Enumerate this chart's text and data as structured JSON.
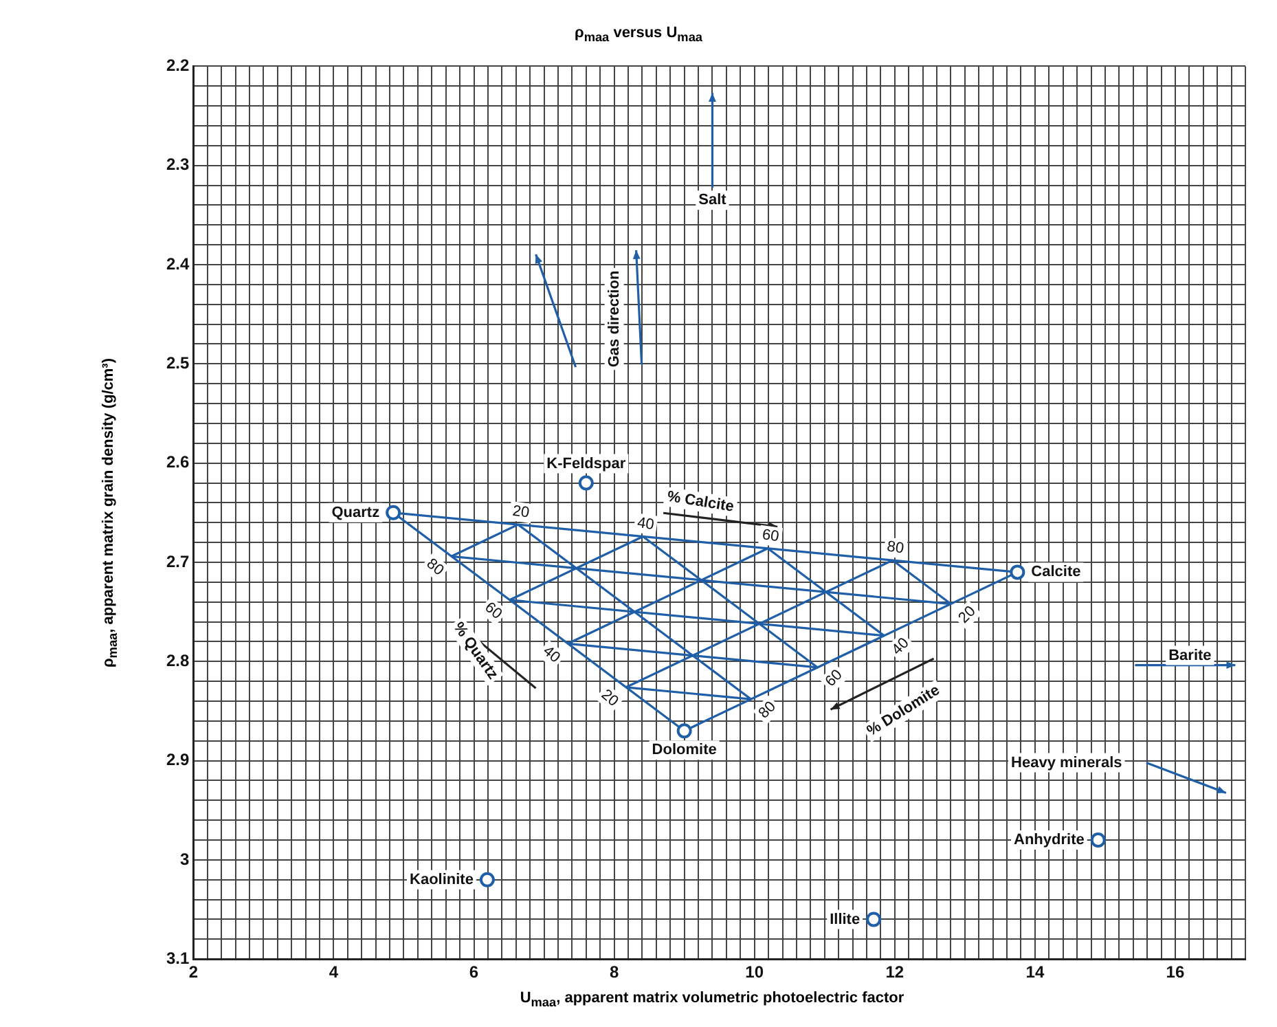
{
  "chart_data": {
    "type": "scatter",
    "title": "ρ$_{maa}$ versus U$_{maa}$",
    "xlabel": "U$_{maa}$, apparent matrix volumetric photoelectric factor",
    "ylabel": "ρ$_{maa}$, apparent matrix grain density (g/cm³)",
    "xlim": [
      2,
      17
    ],
    "ylim": [
      3.1,
      2.2
    ],
    "xticks": [
      2,
      {
        "value": 2.2,
        "label": null
      },
      {
        "value": 2.4,
        "label": null
      },
      {
        "value": 2.6,
        "label": null
      },
      {
        "value": 2.8,
        "label": null
      },
      {
        "value": 3,
        "label": null
      },
      {
        "value": 3.2,
        "label": null
      },
      {
        "value": 3.4,
        "label": null
      },
      {
        "value": 3.6,
        "label": null
      },
      {
        "value": 3.8,
        "label": null
      },
      4,
      {
        "value": 4.2,
        "label": null
      },
      {
        "value": 4.4,
        "label": null
      },
      {
        "value": 4.6,
        "label": null
      },
      {
        "value": 4.8,
        "label": null
      },
      {
        "value": 5,
        "label": null
      },
      {
        "value": 5.2,
        "label": null
      },
      {
        "value": 5.4,
        "label": null
      },
      {
        "value": 5.6,
        "label": null
      },
      {
        "value": 5.8,
        "label": null
      },
      6,
      {
        "value": 6.2,
        "label": null
      },
      {
        "value": 6.4,
        "label": null
      },
      {
        "value": 6.6,
        "label": null
      },
      {
        "value": 6.8,
        "label": null
      },
      {
        "value": 7,
        "label": null
      },
      {
        "value": 7.2,
        "label": null
      },
      {
        "value": 7.4,
        "label": null
      },
      {
        "value": 7.6,
        "label": null
      },
      {
        "value": 7.8,
        "label": null
      },
      8,
      {
        "value": 8.2,
        "label": null
      },
      {
        "value": 8.4,
        "label": null
      },
      {
        "value": 8.6,
        "label": null
      },
      {
        "value": 8.8,
        "label": null
      },
      {
        "value": 9,
        "label": null
      },
      {
        "value": 9.2,
        "label": null
      },
      {
        "value": 9.4,
        "label": null
      },
      {
        "value": 9.6,
        "label": null
      },
      {
        "value": 9.8,
        "label": null
      },
      10,
      {
        "value": 10.2,
        "label": null
      },
      {
        "value": 10.4,
        "label": null
      },
      {
        "value": 10.6,
        "label": null
      },
      {
        "value": 10.8,
        "label": null
      },
      {
        "value": 11,
        "label": null
      },
      {
        "value": 11.2,
        "label": null
      },
      {
        "value": 11.4,
        "label": null
      },
      {
        "value": 11.6,
        "label": null
      },
      {
        "value": 11.8,
        "label": null
      },
      12,
      {
        "value": 12.2,
        "label": null
      },
      {
        "value": 12.4,
        "label": null
      },
      {
        "value": 12.6,
        "label": null
      },
      {
        "value": 12.8,
        "label": null
      },
      {
        "value": 13,
        "label": null
      },
      {
        "value": 13.2,
        "label": null
      },
      {
        "value": 13.4,
        "label": null
      },
      {
        "value": 13.6,
        "label": null
      },
      {
        "value": 13.8,
        "label": null
      },
      14,
      {
        "value": 14.2,
        "label": null
      },
      {
        "value": 14.4,
        "label": null
      },
      {
        "value": 14.6,
        "label": null
      },
      {
        "value": 14.8,
        "label": null
      },
      {
        "value": 15,
        "label": null
      },
      {
        "value": 15.2,
        "label": null
      },
      {
        "value": 15.4,
        "label": null
      },
      {
        "value": 15.6,
        "label": null
      },
      {
        "value": 15.8,
        "label": null
      },
      16,
      {
        "value": 16.2,
        "label": null
      },
      {
        "value": 16.4,
        "label": null
      },
      {
        "value": 16.6,
        "label": null
      },
      {
        "value": 16.8,
        "label": null
      },
      {
        "value": 17,
        "label": null
      }
    ],
    "yticks": [
      2.2,
      {
        "value": 2.22,
        "label": null
      },
      {
        "value": 2.24,
        "label": null
      },
      {
        "value": 2.26,
        "label": null
      },
      {
        "value": 2.28,
        "label": null
      },
      2.3,
      {
        "value": 2.32,
        "label": null
      },
      {
        "value": 2.34,
        "label": null
      },
      {
        "value": 2.36,
        "label": null
      },
      {
        "value": 2.38,
        "label": null
      },
      2.4,
      {
        "value": 2.42,
        "label": null
      },
      {
        "value": 2.44,
        "label": null
      },
      {
        "value": 2.46,
        "label": null
      },
      {
        "value": 2.48,
        "label": null
      },
      2.5,
      {
        "value": 2.52,
        "label": null
      },
      {
        "value": 2.54,
        "label": null
      },
      {
        "value": 2.56,
        "label": null
      },
      {
        "value": 2.58,
        "label": null
      },
      2.6,
      {
        "value": 2.62,
        "label": null
      },
      {
        "value": 2.64,
        "label": null
      },
      {
        "value": 2.66,
        "label": null
      },
      {
        "value": 2.68,
        "label": null
      },
      2.7,
      {
        "value": 2.72,
        "label": null
      },
      {
        "value": 2.74,
        "label": null
      },
      {
        "value": 2.76,
        "label": null
      },
      {
        "value": 2.78,
        "label": null
      },
      2.8,
      {
        "value": 2.82,
        "label": null
      },
      {
        "value": 2.84,
        "label": null
      },
      {
        "value": 2.86,
        "label": null
      },
      {
        "value": 2.88,
        "label": null
      },
      2.9,
      {
        "value": 2.92,
        "label": null
      },
      {
        "value": 2.94,
        "label": null
      },
      {
        "value": 2.96,
        "label": null
      },
      {
        "value": 2.98,
        "label": null
      },
      3.0,
      {
        "value": 3.02,
        "label": null
      },
      {
        "value": 3.04,
        "label": null
      },
      {
        "value": 3.06,
        "label": null
      },
      {
        "value": 3.08,
        "label": null
      },
      3.1
    ],
    "grid": true,
    "legend": false,
    "series": [
      {
        "type": "line",
        "color": "#1f5fa8",
        "x": [
          4.85,
          13.75
        ],
        "values": [
          2.65,
          2.71
        ]
      },
      {
        "type": "line",
        "color": "#1f5fa8",
        "x": [
          13.75,
          9.0
        ],
        "values": [
          2.71,
          2.87
        ]
      },
      {
        "type": "line",
        "color": "#1f5fa8",
        "x": [
          9.0,
          4.85
        ],
        "values": [
          2.87,
          2.65
        ]
      },
      {
        "type": "line",
        "color": "#1f5fa8",
        "x": [
          6.63,
          9.95
        ],
        "values": [
          2.662,
          2.838
        ]
      },
      {
        "type": "line",
        "color": "#1f5fa8",
        "x": [
          8.41,
          10.9
        ],
        "values": [
          2.674,
          2.806
        ]
      },
      {
        "type": "line",
        "color": "#1f5fa8",
        "x": [
          10.19,
          11.85
        ],
        "values": [
          2.686,
          2.774
        ]
      },
      {
        "type": "line",
        "color": "#1f5fa8",
        "x": [
          11.97,
          12.8
        ],
        "values": [
          2.698,
          2.742
        ]
      },
      {
        "type": "line",
        "color": "#1f5fa8",
        "x": [
          5.68,
          12.8
        ],
        "values": [
          2.694,
          2.742
        ]
      },
      {
        "type": "line",
        "color": "#1f5fa8",
        "x": [
          6.51,
          11.85
        ],
        "values": [
          2.738,
          2.774
        ]
      },
      {
        "type": "line",
        "color": "#1f5fa8",
        "x": [
          7.34,
          10.9
        ],
        "values": [
          2.782,
          2.806
        ]
      },
      {
        "type": "line",
        "color": "#1f5fa8",
        "x": [
          8.17,
          9.95
        ],
        "values": [
          2.826,
          2.838
        ]
      },
      {
        "type": "line",
        "color": "#1f5fa8",
        "x": [
          8.17,
          11.97
        ],
        "values": [
          2.826,
          2.698
        ]
      },
      {
        "type": "line",
        "color": "#1f5fa8",
        "x": [
          7.34,
          10.19
        ],
        "values": [
          2.782,
          2.686
        ]
      },
      {
        "type": "line",
        "color": "#1f5fa8",
        "x": [
          6.51,
          8.41
        ],
        "values": [
          2.738,
          2.674
        ]
      },
      {
        "type": "line",
        "color": "#1f5fa8",
        "x": [
          5.68,
          6.63
        ],
        "values": [
          2.694,
          2.662
        ]
      },
      {
        "name": "Quartz",
        "color": "#1f5fa8",
        "marker": "circle",
        "x": [
          4.85
        ],
        "values": [
          2.65
        ]
      },
      {
        "name": "K-Feldspar",
        "color": "#1f5fa8",
        "marker": "circle",
        "x": [
          7.6
        ],
        "values": [
          2.62
        ]
      },
      {
        "name": "Calcite",
        "color": "#1f5fa8",
        "marker": "circle",
        "x": [
          13.75
        ],
        "values": [
          2.71
        ]
      },
      {
        "name": "Dolomite",
        "color": "#1f5fa8",
        "marker": "circle",
        "x": [
          9.0
        ],
        "values": [
          2.87
        ]
      },
      {
        "name": "Kaolinite",
        "color": "#1f5fa8",
        "marker": "circle",
        "x": [
          6.19
        ],
        "values": [
          3.02
        ]
      },
      {
        "name": "Illite",
        "color": "#1f5fa8",
        "marker": "circle",
        "x": [
          11.7
        ],
        "values": [
          3.06
        ]
      },
      {
        "name": "Anhydrite",
        "color": "#1f5fa8",
        "marker": "circle",
        "x": [
          14.9
        ],
        "values": [
          2.98
        ]
      }
    ],
    "annotations": [
      {
        "text": "Salt",
        "x": 9.4,
        "y": 2.335
      },
      "Gas direction",
      "% Calcite",
      "% Quartz",
      "% Dolomite",
      {
        "text": "Barite",
        "x": 16.21,
        "y": 2.794
      },
      "Heavy minerals",
      {
        "text": "20",
        "x": 6.63,
        "y": 2.662
      },
      {
        "text": "40",
        "x": 8.41,
        "y": 2.674
      },
      {
        "text": "60",
        "x": 10.19,
        "y": 2.686
      },
      {
        "text": "80",
        "x": 11.97,
        "y": 2.698
      },
      {
        "text": "80",
        "x": 5.68,
        "y": 2.694
      },
      {
        "text": "60",
        "x": 6.51,
        "y": 2.738
      },
      {
        "text": "40",
        "x": 7.34,
        "y": 2.782
      },
      {
        "text": "20",
        "x": 8.17,
        "y": 2.826
      },
      {
        "text": "20",
        "x": 12.8,
        "y": 2.742
      },
      {
        "text": "40",
        "x": 11.85,
        "y": 2.774
      },
      {
        "text": "60",
        "x": 10.9,
        "y": 2.806
      },
      {
        "text": "80",
        "x": 9.95,
        "y": 2.838
      }
    ]
  }
}
